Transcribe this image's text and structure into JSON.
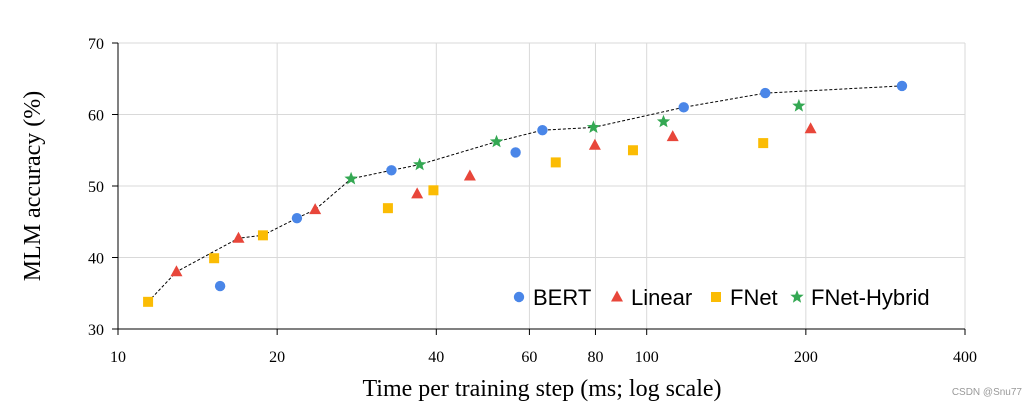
{
  "chart_data": {
    "type": "scatter",
    "xlabel": "Time per training step (ms; log scale)",
    "ylabel": "MLM accuracy (%)",
    "x_scale": "log",
    "xlim": [
      10,
      400
    ],
    "ylim": [
      30,
      70
    ],
    "x_ticks": [
      10,
      20,
      40,
      60,
      80,
      100,
      200,
      400
    ],
    "y_ticks": [
      30,
      40,
      50,
      60,
      70
    ],
    "grid": true,
    "legend_position": "bottom-right",
    "colors": {
      "BERT": "#4a86e8",
      "Linear": "#e8463a",
      "FNet": "#fbbc04",
      "FNet-Hybrid": "#34a853"
    },
    "series": [
      {
        "name": "BERT",
        "marker": "circle",
        "points": [
          [
            15.6,
            36.0
          ],
          [
            21.8,
            45.5
          ],
          [
            32.9,
            52.2
          ],
          [
            56.5,
            54.7
          ],
          [
            63.5,
            57.8
          ],
          [
            117.5,
            61.0
          ],
          [
            167.6,
            63.0
          ],
          [
            304.0,
            64.0
          ]
        ]
      },
      {
        "name": "Linear",
        "marker": "triangle",
        "points": [
          [
            12.9,
            38.0
          ],
          [
            16.9,
            42.7
          ],
          [
            23.6,
            46.7
          ],
          [
            36.8,
            48.9
          ],
          [
            46.3,
            51.4
          ],
          [
            79.8,
            55.7
          ],
          [
            112.0,
            56.9
          ],
          [
            204.2,
            58.0
          ]
        ]
      },
      {
        "name": "FNet",
        "marker": "square",
        "points": [
          [
            11.4,
            33.8
          ],
          [
            15.2,
            39.9
          ],
          [
            18.8,
            43.1
          ],
          [
            32.4,
            46.9
          ],
          [
            39.5,
            49.4
          ],
          [
            67.3,
            53.3
          ],
          [
            94.2,
            55.0
          ],
          [
            166.1,
            56.0
          ]
        ]
      },
      {
        "name": "FNet-Hybrid",
        "marker": "star",
        "points": [
          [
            27.6,
            51.0
          ],
          [
            37.2,
            53.0
          ],
          [
            52.0,
            56.2
          ],
          [
            79.3,
            58.2
          ],
          [
            107.6,
            59.0
          ],
          [
            194.0,
            61.2
          ]
        ]
      }
    ],
    "frontier": [
      [
        11.4,
        33.8
      ],
      [
        12.9,
        38.0
      ],
      [
        16.9,
        42.7
      ],
      [
        18.8,
        43.1
      ],
      [
        21.8,
        45.5
      ],
      [
        23.6,
        46.7
      ],
      [
        27.6,
        51.0
      ],
      [
        32.9,
        52.2
      ],
      [
        37.2,
        53.0
      ],
      [
        52.0,
        56.2
      ],
      [
        63.5,
        57.8
      ],
      [
        79.3,
        58.2
      ],
      [
        117.5,
        61.0
      ],
      [
        167.6,
        63.0
      ],
      [
        304.0,
        64.0
      ]
    ]
  },
  "watermark": "CSDN @Snu77"
}
